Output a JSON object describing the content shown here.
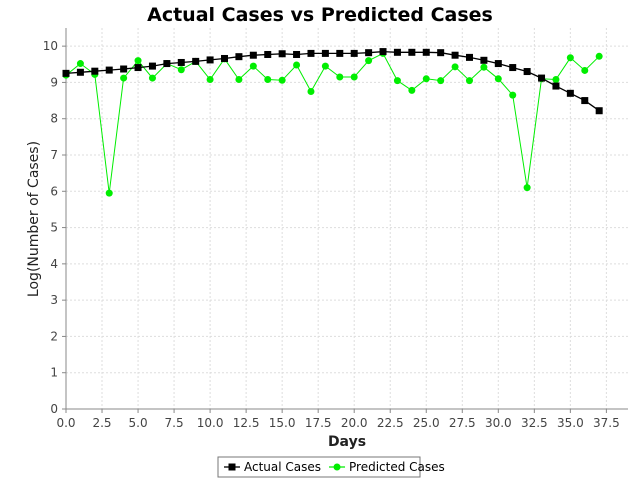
{
  "chart_data": {
    "type": "line",
    "title": "Actual Cases vs Predicted Cases",
    "xlabel": "Days",
    "ylabel": "Log(Number of Cases)",
    "xlim": [
      0,
      39
    ],
    "ylim": [
      0,
      10.5
    ],
    "x_ticks": [
      "0.0",
      "2.5",
      "5.0",
      "7.5",
      "10.0",
      "12.5",
      "15.0",
      "17.5",
      "20.0",
      "22.5",
      "25.0",
      "27.5",
      "30.0",
      "32.5",
      "35.0",
      "37.5"
    ],
    "y_ticks": [
      "0",
      "1",
      "2",
      "3",
      "4",
      "5",
      "6",
      "7",
      "8",
      "9",
      "10"
    ],
    "grid": true,
    "legend_position": "bottom",
    "x": [
      0,
      1,
      2,
      3,
      4,
      5,
      6,
      7,
      8,
      9,
      10,
      11,
      12,
      13,
      14,
      15,
      16,
      17,
      18,
      19,
      20,
      21,
      22,
      23,
      24,
      25,
      26,
      27,
      28,
      29,
      30,
      31,
      32,
      33,
      34,
      35,
      36,
      37
    ],
    "series": [
      {
        "name": "Actual Cases",
        "color": "#000000",
        "marker": "square",
        "values": [
          9.25,
          9.28,
          9.31,
          9.34,
          9.37,
          9.41,
          9.45,
          9.52,
          9.55,
          9.58,
          9.62,
          9.66,
          9.71,
          9.75,
          9.77,
          9.79,
          9.77,
          9.8,
          9.8,
          9.8,
          9.8,
          9.82,
          9.85,
          9.83,
          9.83,
          9.83,
          9.82,
          9.75,
          9.69,
          9.61,
          9.52,
          9.41,
          9.3,
          9.12,
          8.9,
          8.7,
          8.5,
          8.22
        ]
      },
      {
        "name": "Predicted Cases",
        "color": "#00ee00",
        "marker": "circle",
        "values": [
          9.2,
          9.52,
          9.22,
          5.95,
          9.12,
          9.6,
          9.12,
          9.52,
          9.35,
          9.58,
          9.08,
          9.65,
          9.08,
          9.45,
          9.08,
          9.06,
          9.48,
          8.75,
          9.45,
          9.15,
          9.15,
          9.6,
          9.8,
          9.05,
          8.78,
          9.1,
          9.05,
          9.43,
          9.05,
          9.42,
          9.1,
          8.65,
          6.1,
          9.1,
          9.08,
          9.68,
          9.33,
          9.72
        ]
      }
    ]
  }
}
